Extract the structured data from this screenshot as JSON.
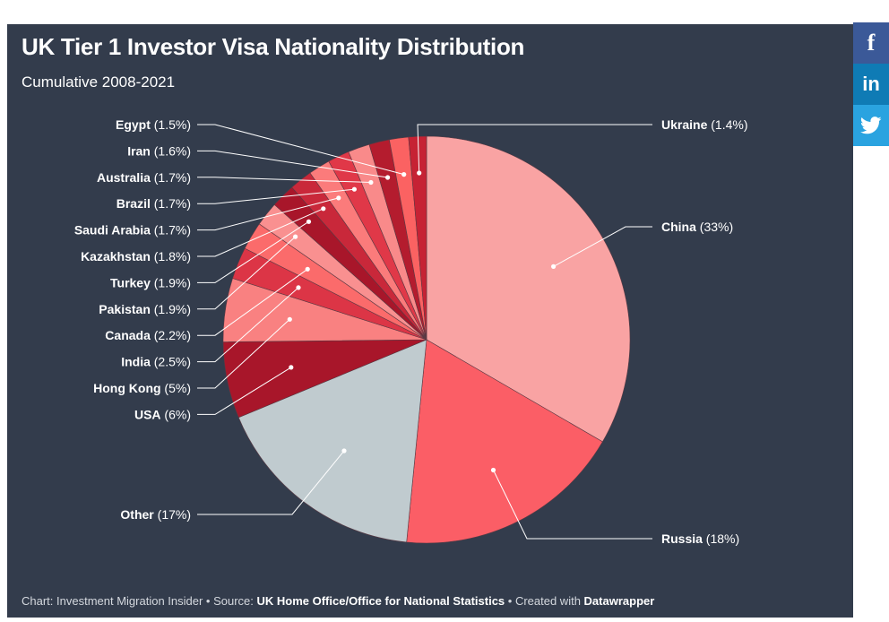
{
  "chart_data": {
    "type": "pie",
    "title": "UK Tier 1 Investor Visa Nationality Distribution",
    "subtitle": "Cumulative 2008-2021",
    "slices": [
      {
        "label": "China",
        "value": 33,
        "value_label": "(33%)",
        "color": "#f9a3a3"
      },
      {
        "label": "Russia",
        "value": 18,
        "value_label": "(18%)",
        "color": "#fb5e66"
      },
      {
        "label": "Other",
        "value": 17,
        "value_label": "(17%)",
        "color": "#c0cbcf"
      },
      {
        "label": "USA",
        "value": 6,
        "value_label": "(6%)",
        "color": "#a8162a"
      },
      {
        "label": "Hong Kong",
        "value": 5,
        "value_label": "(5%)",
        "color": "#f98181"
      },
      {
        "label": "India",
        "value": 2.5,
        "value_label": "(2.5%)",
        "color": "#dc3546"
      },
      {
        "label": "Canada",
        "value": 2.2,
        "value_label": "(2.2%)",
        "color": "#fb6b6b"
      },
      {
        "label": "Pakistan",
        "value": 1.9,
        "value_label": "(1.9%)",
        "color": "#f99090"
      },
      {
        "label": "Turkey",
        "value": 1.9,
        "value_label": "(1.9%)",
        "color": "#a8162a"
      },
      {
        "label": "Kazakhstan",
        "value": 1.8,
        "value_label": "(1.8%)",
        "color": "#c9283a"
      },
      {
        "label": "Saudi Arabia",
        "value": 1.7,
        "value_label": "(1.7%)",
        "color": "#fb7b7b"
      },
      {
        "label": "Brazil",
        "value": 1.7,
        "value_label": "(1.7%)",
        "color": "#e03848"
      },
      {
        "label": "Australia",
        "value": 1.7,
        "value_label": "(1.7%)",
        "color": "#f98a8a"
      },
      {
        "label": "Iran",
        "value": 1.6,
        "value_label": "(1.6%)",
        "color": "#b41c2e"
      },
      {
        "label": "Egypt",
        "value": 1.5,
        "value_label": "(1.5%)",
        "color": "#fb6262"
      },
      {
        "label": "Ukraine",
        "value": 1.4,
        "value_label": "(1.4%)",
        "color": "#c62234"
      }
    ]
  },
  "footer": {
    "chart_prefix": "Chart: Investment Migration Insider • Source: ",
    "source": "UK Home Office/Office for National Statistics",
    "created_prefix": " • Created with ",
    "tool": "Datawrapper"
  },
  "share": {
    "facebook": "f",
    "linkedin": "in",
    "twitter": "🐦"
  },
  "colors": {
    "background": "#333c4c",
    "text": "#ffffff",
    "leader_line": "#ffffff"
  }
}
